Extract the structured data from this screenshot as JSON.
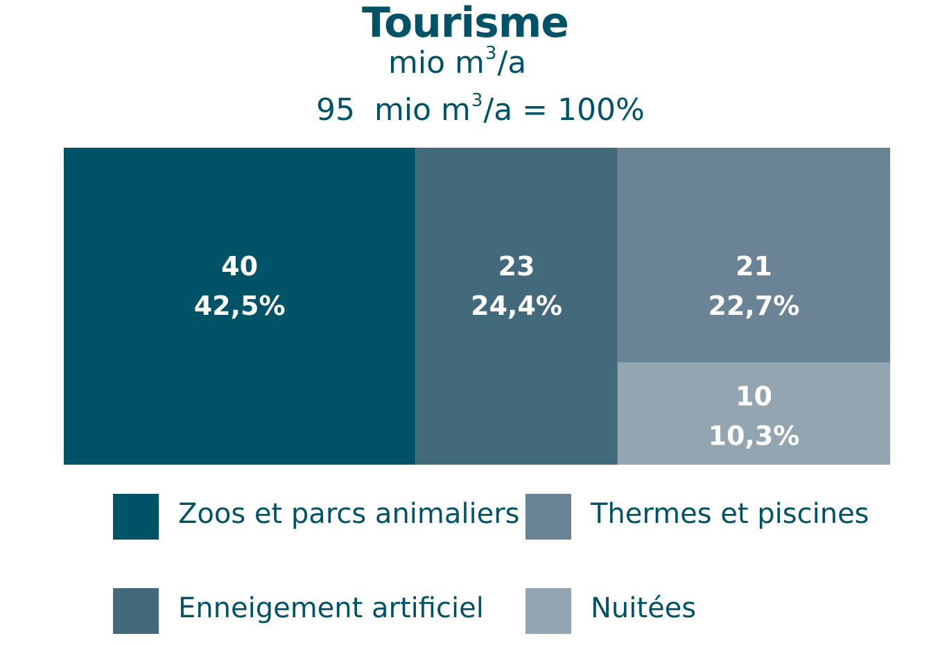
{
  "chart_data": {
    "type": "treemap",
    "title": "Tourisme",
    "unit": {
      "prefix": "mio m",
      "sup": "3",
      "suffix": "/a"
    },
    "total": {
      "value": "95",
      "prefix": "mio m",
      "sup": "3",
      "suffix": "/a = 100%"
    },
    "series": [
      {
        "name": "Zoos et parcs animaliers",
        "value": 40,
        "percent": "42,5%",
        "color": "#005366"
      },
      {
        "name": "Enneigement artificiel",
        "value": 23,
        "percent": "24,4%",
        "color": "#426a7b"
      },
      {
        "name": "Thermes et piscines",
        "value": 21,
        "percent": "22,7%",
        "color": "#6a8495"
      },
      {
        "name": "Nuitées",
        "value": 10,
        "percent": "10,3%",
        "color": "#94a5b2"
      }
    ],
    "legend_position": "bottom"
  }
}
